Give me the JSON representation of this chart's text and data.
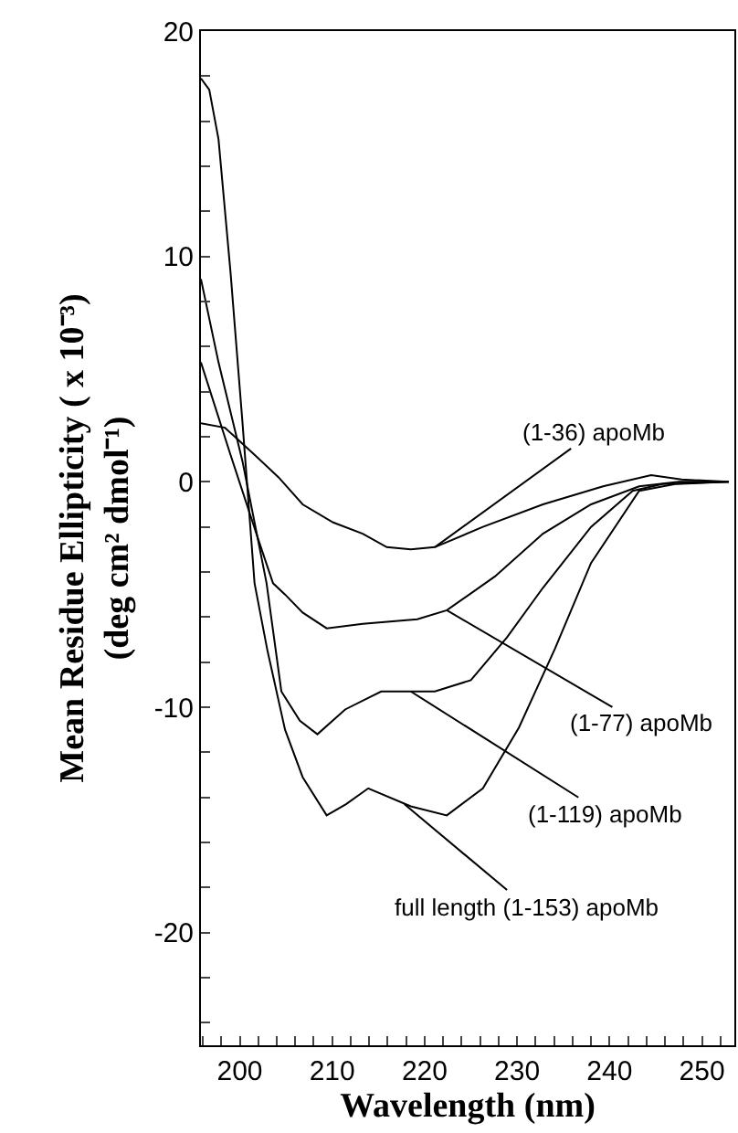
{
  "chart_data": {
    "type": "line",
    "xlabel": "Wavelength (nm)",
    "ylabel": "Mean Residue Ellipticity ( x 10⁻³)\n(deg cm² dmol⁻¹)",
    "xlim": [
      195.8,
      253.5
    ],
    "ylim": [
      -25,
      20
    ],
    "xticks": [
      {
        "value": 196,
        "label": null
      },
      {
        "value": 198,
        "label": null
      },
      200,
      {
        "value": 202,
        "label": null
      },
      {
        "value": 204,
        "label": null
      },
      {
        "value": 206,
        "label": null
      },
      {
        "value": 208,
        "label": null
      },
      210,
      {
        "value": 212,
        "label": null
      },
      {
        "value": 214,
        "label": null
      },
      {
        "value": 216,
        "label": null
      },
      {
        "value": 218,
        "label": null
      },
      220,
      {
        "value": 222,
        "label": null
      },
      {
        "value": 224,
        "label": null
      },
      {
        "value": 226,
        "label": null
      },
      {
        "value": 228,
        "label": null
      },
      230,
      {
        "value": 232,
        "label": null
      },
      {
        "value": 234,
        "label": null
      },
      {
        "value": 236,
        "label": null
      },
      {
        "value": 238,
        "label": null
      },
      240,
      {
        "value": 242,
        "label": null
      },
      {
        "value": 244,
        "label": null
      },
      {
        "value": 246,
        "label": null
      },
      {
        "value": 248,
        "label": null
      },
      250,
      {
        "value": 252,
        "label": null
      }
    ],
    "yticks": [
      {
        "value": -24,
        "label": null
      },
      {
        "value": -22,
        "label": null
      },
      -20,
      {
        "value": -18,
        "label": null
      },
      {
        "value": -16,
        "label": null
      },
      {
        "value": -14,
        "label": null
      },
      {
        "value": -12,
        "label": null
      },
      -10,
      {
        "value": -8,
        "label": null
      },
      {
        "value": -6,
        "label": null
      },
      {
        "value": -4,
        "label": null
      },
      {
        "value": -2,
        "label": null
      },
      0,
      {
        "value": 2,
        "label": null
      },
      {
        "value": 4,
        "label": null
      },
      {
        "value": 6,
        "label": null
      },
      {
        "value": 8,
        "label": null
      },
      10,
      {
        "value": 12,
        "label": null
      },
      {
        "value": 14,
        "label": null
      },
      {
        "value": 16,
        "label": null
      },
      {
        "value": 18,
        "label": null
      },
      20
    ],
    "marker": "none",
    "line_style": "solid",
    "series": [
      {
        "color": "#000000",
        "x": [
          195.8,
          198.4,
          201.6,
          204.2,
          206.8,
          210.1,
          213.3,
          215.9,
          218.5,
          221.1,
          226.3,
          232.8,
          239.3,
          244.5,
          247.8,
          252.9
        ],
        "values": [
          2.6,
          2.4,
          1.2,
          0.2,
          -1.0,
          -1.8,
          -2.3,
          -2.9,
          -3.0,
          -2.9,
          -2.0,
          -1.0,
          -0.2,
          0.3,
          0.1,
          0.0
        ]
      },
      {
        "color": "#000000",
        "x": [
          195.8,
          199.0,
          202.2,
          203.6,
          204.9,
          206.8,
          209.4,
          213.3,
          219.2,
          222.4,
          227.6,
          232.8,
          238.0,
          243.2,
          247.5,
          252.9
        ],
        "values": [
          5.3,
          1.2,
          -2.8,
          -4.5,
          -5.0,
          -5.8,
          -6.5,
          -6.3,
          -6.1,
          -5.7,
          -4.2,
          -2.3,
          -1.0,
          -0.2,
          0.0,
          0.0
        ]
      },
      {
        "color": "#000000",
        "x": [
          195.8,
          197.7,
          200.3,
          202.9,
          204.5,
          206.5,
          208.4,
          211.4,
          215.3,
          221.1,
          225.0,
          228.9,
          232.8,
          238.0,
          242.5,
          245.7,
          252.9
        ],
        "values": [
          9.0,
          5.3,
          0.9,
          -4.5,
          -9.3,
          -10.6,
          -11.2,
          -10.1,
          -9.3,
          -9.3,
          -8.8,
          -6.9,
          -4.7,
          -2.0,
          -0.4,
          -0.1,
          0.0
        ]
      },
      {
        "color": "#000000",
        "x": [
          195.8,
          196.7,
          197.7,
          199.0,
          200.3,
          201.6,
          203.0,
          204.9,
          206.8,
          209.4,
          211.5,
          213.9,
          218.5,
          222.4,
          226.3,
          230.2,
          234.1,
          238.0,
          243.2,
          247.1,
          252.9
        ],
        "values": [
          17.9,
          17.4,
          15.2,
          9.3,
          2.6,
          -4.5,
          -7.5,
          -11.0,
          -13.1,
          -14.8,
          -14.3,
          -13.6,
          -14.4,
          -14.8,
          -13.6,
          -10.9,
          -7.4,
          -3.6,
          -0.4,
          -0.1,
          0.0
        ]
      }
    ],
    "annotations": [
      {
        "text": "(1-36) apoMb",
        "x": 221.1,
        "y": -2.9
      },
      {
        "text": "(1-77) apoMb",
        "x": 222.4,
        "y": -5.7
      },
      {
        "text": "(1-119) apoMb",
        "x": 218.5,
        "y": -9.3
      },
      {
        "text": "full length (1-153) apoMb",
        "x": 217.8,
        "y": -14.3
      }
    ]
  }
}
